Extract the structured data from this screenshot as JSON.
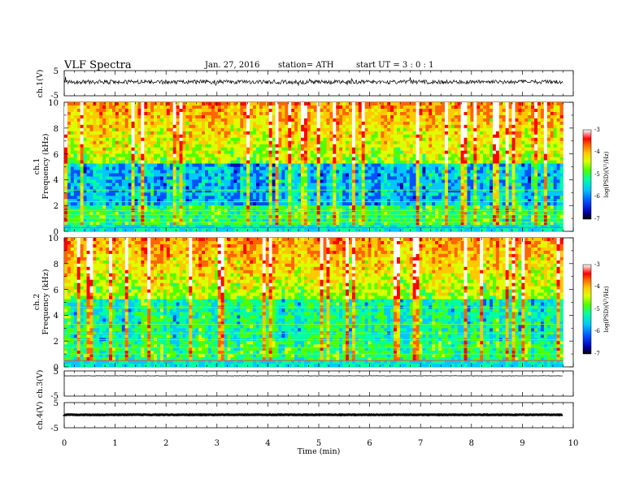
{
  "header": {
    "title": "VLF  Spectra",
    "date": "Jan.  27,  2016",
    "station": "station= ATH",
    "start": "start   UT  =    3  : 0   : 1"
  },
  "chart_data": {
    "type": "heatmap",
    "x_axis": {
      "label": "Time  (min)",
      "range": [
        0,
        10
      ],
      "ticks": [
        "0",
        "1",
        "2",
        "3",
        "4",
        "5",
        "6",
        "7",
        "8",
        "9",
        "10"
      ]
    },
    "panels": [
      {
        "id": "ch1-waveform",
        "type": "line",
        "ylabel": "ch.1(V)",
        "ylim": [
          -5,
          5
        ],
        "ticks": [
          "5",
          "-5"
        ],
        "data_end_min": 9.8
      },
      {
        "id": "ch1-spectrogram",
        "type": "heatmap",
        "ylabel_top": "ch.1",
        "ylabel": "Frequency  (kHz)",
        "ylim": [
          0,
          10
        ],
        "ticks": [
          "0",
          "2",
          "4",
          "6",
          "8",
          "10"
        ],
        "data_end_min": 9.8
      },
      {
        "id": "ch2-spectrogram",
        "type": "heatmap",
        "ylabel_top": "ch.2",
        "ylabel": "Frequency  (kHz)",
        "ylim": [
          0,
          10
        ],
        "ticks": [
          "0",
          "2",
          "4",
          "6",
          "8",
          "10"
        ],
        "data_end_min": 9.8
      },
      {
        "id": "ch3-waveform",
        "type": "line",
        "ylabel": "ch.3(V)",
        "ylim": [
          -5,
          5
        ],
        "ticks": [
          "5",
          "-5"
        ],
        "data_end_min": 9.8
      },
      {
        "id": "ch4-waveform",
        "type": "line",
        "ylabel": "ch.4(V)",
        "ylim": [
          -5,
          5
        ],
        "ticks": [
          "5",
          "-5"
        ],
        "data_end_min": 9.8
      }
    ],
    "colorbar": {
      "label": "log(PSD)(V²/Hz)",
      "range": [
        -7,
        -3
      ],
      "ticks": [
        "-3",
        "-4",
        "-5",
        "-6",
        "-7"
      ],
      "colors": [
        "#000000",
        "#0000b4",
        "#0050ff",
        "#00c8ff",
        "#00ffa0",
        "#50ff00",
        "#dcff00",
        "#ffc800",
        "#ff6400",
        "#ff0000",
        "#ffffff"
      ]
    }
  }
}
